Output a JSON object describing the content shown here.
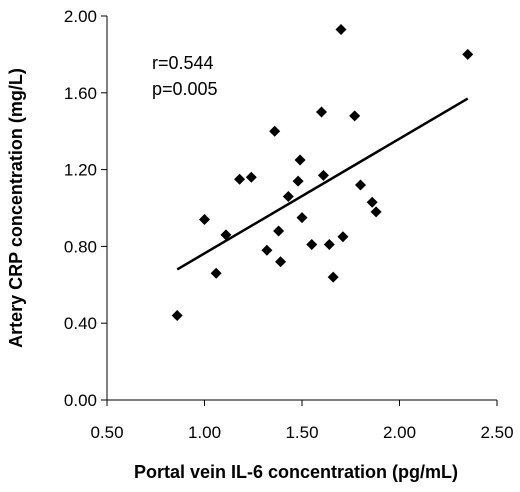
{
  "chart_data": {
    "type": "scatter",
    "xlabel": "Portal vein IL-6 concentration (pg/mL)",
    "ylabel": "Artery CRP concentration (mg/L)",
    "xlim": [
      0.5,
      2.5
    ],
    "ylim": [
      0.0,
      2.0
    ],
    "x_ticks": [
      "0.50",
      "1.00",
      "1.50",
      "2.00",
      "2.50"
    ],
    "y_ticks": [
      "0.00",
      "0.40",
      "0.80",
      "1.20",
      "1.60",
      "2.00"
    ],
    "grid": false,
    "annotations": [
      "r=0.544",
      "p=0.005"
    ],
    "points": [
      {
        "x": 0.86,
        "y": 0.44
      },
      {
        "x": 1.0,
        "y": 0.94
      },
      {
        "x": 1.06,
        "y": 0.66
      },
      {
        "x": 1.11,
        "y": 0.86
      },
      {
        "x": 1.18,
        "y": 1.15
      },
      {
        "x": 1.24,
        "y": 1.16
      },
      {
        "x": 1.32,
        "y": 0.78
      },
      {
        "x": 1.36,
        "y": 1.4
      },
      {
        "x": 1.38,
        "y": 0.88
      },
      {
        "x": 1.39,
        "y": 0.72
      },
      {
        "x": 1.43,
        "y": 1.06
      },
      {
        "x": 1.48,
        "y": 1.14
      },
      {
        "x": 1.49,
        "y": 1.25
      },
      {
        "x": 1.5,
        "y": 0.95
      },
      {
        "x": 1.55,
        "y": 0.81
      },
      {
        "x": 1.6,
        "y": 1.5
      },
      {
        "x": 1.61,
        "y": 1.17
      },
      {
        "x": 1.64,
        "y": 0.81
      },
      {
        "x": 1.66,
        "y": 0.64
      },
      {
        "x": 1.7,
        "y": 1.93
      },
      {
        "x": 1.71,
        "y": 0.85
      },
      {
        "x": 1.77,
        "y": 1.48
      },
      {
        "x": 1.8,
        "y": 1.12
      },
      {
        "x": 1.86,
        "y": 1.03
      },
      {
        "x": 1.88,
        "y": 0.98
      },
      {
        "x": 2.35,
        "y": 1.8
      }
    ],
    "trendline": {
      "x": [
        0.86,
        2.35
      ],
      "y": [
        0.68,
        1.57
      ]
    }
  }
}
